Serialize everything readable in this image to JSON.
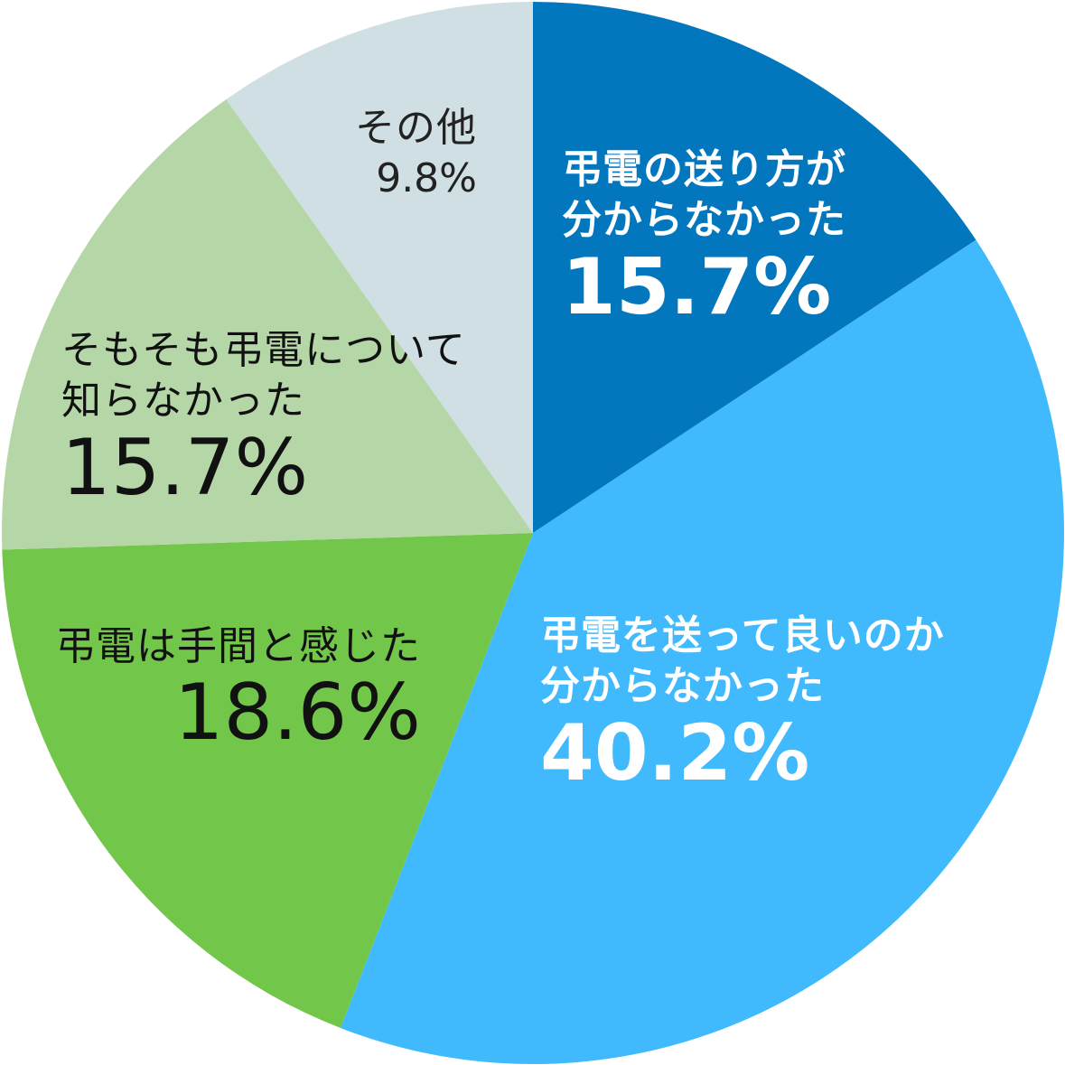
{
  "chart_data": {
    "type": "pie",
    "title": "",
    "start": "top",
    "direction": "clockwise",
    "slices": [
      {
        "label_lines": [
          "弔電の送り方が",
          "分からなかった"
        ],
        "value": 15.7,
        "display": "15.7%",
        "color": "#0277BD",
        "text_color": "#FFFFFF",
        "bold": true
      },
      {
        "label_lines": [
          "弔電を送って良いのか",
          "分からなかった"
        ],
        "value": 40.2,
        "display": "40.2%",
        "color": "#40BAFC",
        "text_color": "#FFFFFF",
        "bold": true
      },
      {
        "label_lines": [
          "弔電は手間と感じた"
        ],
        "value": 18.6,
        "display": "18.6%",
        "color": "#72C74A",
        "text_color": "#111111",
        "bold": false
      },
      {
        "label_lines": [
          "そもそも弔電について",
          "知らなかった"
        ],
        "value": 15.7,
        "display": "15.7%",
        "color": "#B5D7A8",
        "text_color": "#111111",
        "bold": false
      },
      {
        "label_lines": [
          "その他"
        ],
        "value": 9.8,
        "display": "9.8%",
        "color": "#CFDFE3",
        "text_color": "#222222",
        "bold": false
      }
    ]
  }
}
